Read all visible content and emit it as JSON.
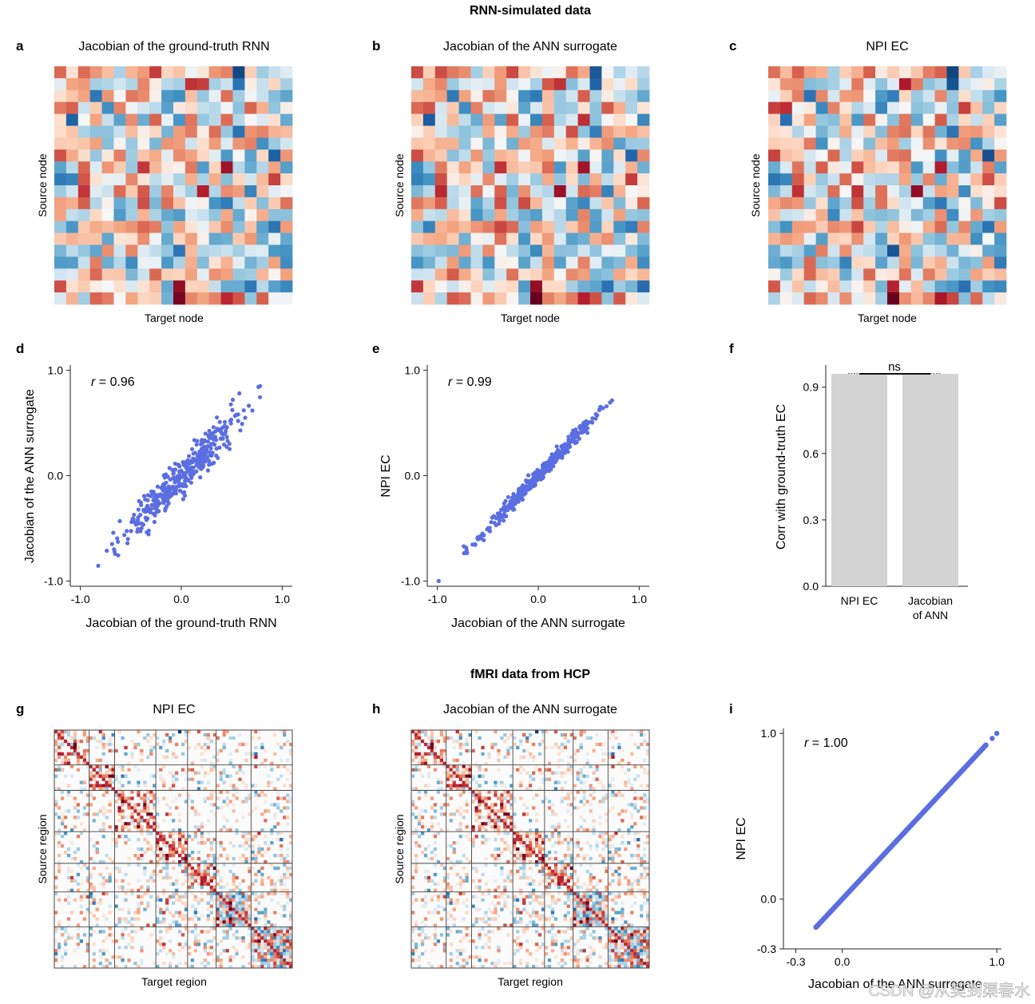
{
  "sections": {
    "top_title": "RNN-simulated data",
    "bottom_title": "fMRI data from HCP"
  },
  "watermark": "CSDN @从契到渠春水",
  "chart_data": [
    {
      "panel": "a",
      "type": "heatmap",
      "title": "Jacobian of the ground-truth RNN",
      "xlabel": "Target node",
      "ylabel": "Source node",
      "grid_size": 20,
      "colormap": "RdBu_r"
    },
    {
      "panel": "b",
      "type": "heatmap",
      "title": "Jacobian of the ANN surrogate",
      "xlabel": "Target node",
      "ylabel": "Source node",
      "grid_size": 20,
      "colormap": "RdBu_r"
    },
    {
      "panel": "c",
      "type": "heatmap",
      "title": "NPI EC",
      "xlabel": "Target node",
      "ylabel": "Source node",
      "grid_size": 20,
      "colormap": "RdBu_r"
    },
    {
      "panel": "d",
      "type": "scatter",
      "xlabel": "Jacobian of the ground-truth RNN",
      "ylabel": "Jacobian of the ANN surrogate",
      "annotation_italic": "r",
      "annotation_rest": " = 0.96",
      "r": 0.96,
      "n_points": 400,
      "xlim": [
        -1.1,
        1.1
      ],
      "ylim": [
        -1.05,
        1.05
      ],
      "xticks": [
        "-1.0",
        "0.0",
        "1.0"
      ],
      "yticks": [
        "-1.0",
        "0.0",
        "1.0"
      ],
      "color": "#5b6ee1"
    },
    {
      "panel": "e",
      "type": "scatter",
      "xlabel": "Jacobian of the ANN surrogate",
      "ylabel": "NPI EC",
      "annotation_italic": "r",
      "annotation_rest": " = 0.99",
      "r": 0.99,
      "n_points": 400,
      "xlim": [
        -1.1,
        1.1
      ],
      "ylim": [
        -1.05,
        1.05
      ],
      "xticks": [
        "-1.0",
        "0.0",
        "1.0"
      ],
      "yticks": [
        "-1.0",
        "0.0",
        "1.0"
      ],
      "color": "#5b6ee1"
    },
    {
      "panel": "f",
      "type": "bar",
      "categories": [
        "NPI EC",
        "Jacobian of ANN"
      ],
      "category_lines": [
        [
          "NPI EC"
        ],
        [
          "Jacobian",
          "of ANN"
        ]
      ],
      "values": [
        0.96,
        0.96
      ],
      "ylabel": "Corr with ground-truth EC",
      "ylim": [
        0,
        1.0
      ],
      "yticks": [
        "0.0",
        "0.3",
        "0.6",
        "0.9"
      ],
      "significance": "ns",
      "bar_color": "#d3d3d3"
    },
    {
      "panel": "g",
      "type": "heatmap",
      "title": "NPI EC",
      "xlabel": "Target region",
      "ylabel": "Source region",
      "grid_size": 75,
      "colormap": "RdBu_r"
    },
    {
      "panel": "h",
      "type": "heatmap",
      "title": "Jacobian of the ANN surrogate",
      "xlabel": "Target region",
      "ylabel": "Source region",
      "grid_size": 75,
      "colormap": "RdBu_r"
    },
    {
      "panel": "i",
      "type": "scatter",
      "xlabel": "Jacobian of the ANN surrogate",
      "ylabel": "NPI EC",
      "annotation_italic": "r",
      "annotation_rest": " = 1.00",
      "r": 1.0,
      "xlim": [
        -0.38,
        1.03
      ],
      "ylim": [
        -0.3,
        1.03
      ],
      "xticks": [
        "-0.3",
        "0.0",
        "1.0"
      ],
      "yticks": [
        "-0.3",
        "0.0",
        "1.0"
      ],
      "segment": [
        [
          -0.17,
          -0.17
        ],
        [
          0.93,
          0.93
        ]
      ],
      "outliers": [
        [
          0.97,
          0.97
        ],
        [
          1.0,
          1.0
        ]
      ],
      "color": "#5b6ee1"
    }
  ]
}
